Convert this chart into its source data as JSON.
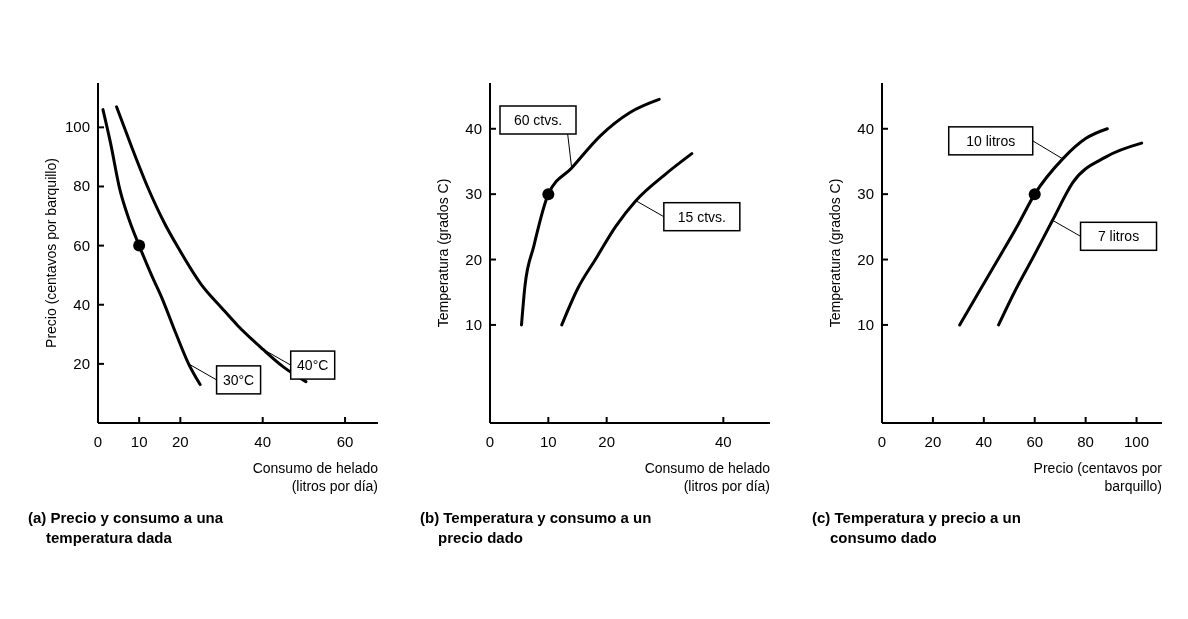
{
  "chart_data": [
    {
      "type": "line",
      "title": "(a) Precio y consumo a una temperatura dada",
      "xlabel": "Consumo de helado (litros por día)",
      "ylabel": "Precio (centavos por barquillo)",
      "xlim": [
        0,
        68
      ],
      "ylim": [
        0,
        115
      ],
      "xticks": [
        0,
        10,
        20,
        40,
        60
      ],
      "yticks": [
        20,
        40,
        60,
        80,
        100
      ],
      "series": [
        {
          "type": "line",
          "color": "#000000",
          "x": [
            1.2,
            3,
            5.3,
            7.5,
            10,
            13,
            15.6,
            19,
            22,
            24.8
          ],
          "values": [
            106,
            95,
            79,
            69,
            60,
            50,
            42,
            30,
            20,
            13
          ]
        },
        {
          "type": "line",
          "color": "#000000",
          "x": [
            4.5,
            8,
            12,
            16,
            19.6,
            25,
            30,
            33.9,
            40,
            45,
            50.5
          ],
          "values": [
            107,
            94,
            80,
            68,
            59,
            47,
            39,
            33,
            25,
            19,
            14
          ]
        },
        {
          "type": "scatter",
          "marker": "circle",
          "color": "#000000",
          "x": [
            10
          ],
          "values": [
            60
          ]
        }
      ],
      "annotations": [
        {
          "text": "30°C",
          "x": 22,
          "y": 20
        },
        {
          "text": "40°C",
          "x": 40,
          "y": 25
        }
      ]
    },
    {
      "type": "line",
      "title": "(b) Temperatura y consumo a un precio dado",
      "xlabel": "Consumo de helado (litros por día)",
      "ylabel": "Temperatura (grados C)",
      "xlim": [
        0,
        48
      ],
      "ylim": [
        -5,
        47
      ],
      "xticks": [
        0,
        10,
        20,
        40
      ],
      "yticks": [
        10,
        20,
        30,
        40
      ],
      "series": [
        {
          "type": "line",
          "color": "#000000",
          "x": [
            5.4,
            6,
            7.5,
            10,
            14,
            19,
            24,
            29
          ],
          "values": [
            10,
            16,
            22,
            30,
            34,
            39,
            42.5,
            44.5
          ]
        },
        {
          "type": "line",
          "color": "#000000",
          "x": [
            12.3,
            15,
            18.2,
            21.5,
            25,
            30,
            34.6
          ],
          "values": [
            10,
            15.5,
            20.2,
            25,
            29,
            33,
            36.2
          ]
        },
        {
          "type": "scatter",
          "marker": "circle",
          "color": "#000000",
          "x": [
            10
          ],
          "values": [
            30
          ]
        }
      ],
      "annotations": [
        {
          "text": "60 ctvs.",
          "x": 14,
          "y": 34
        },
        {
          "text": "15 ctvs.",
          "x": 25,
          "y": 29
        }
      ]
    },
    {
      "type": "line",
      "title": "(c) Temperatura y precio a un consumo dado",
      "xlabel": "Precio (centavos por barquillo)",
      "ylabel": "Temperatura (grados C)",
      "xlim": [
        0,
        110
      ],
      "ylim": [
        -5,
        47
      ],
      "xticks": [
        0,
        20,
        40,
        60,
        80,
        100
      ],
      "yticks": [
        10,
        20,
        30,
        40
      ],
      "series": [
        {
          "type": "line",
          "color": "#000000",
          "x": [
            30.5,
            38,
            46,
            53,
            60,
            71,
            80,
            88.5
          ],
          "values": [
            10,
            15,
            20.3,
            25,
            30,
            35.4,
            38.5,
            40
          ]
        },
        {
          "type": "line",
          "color": "#000000",
          "x": [
            45.8,
            52,
            60,
            67,
            75,
            88,
            102
          ],
          "values": [
            10,
            15,
            20.8,
            26,
            31.8,
            35.7,
            37.8
          ]
        },
        {
          "type": "scatter",
          "marker": "circle",
          "color": "#000000",
          "x": [
            60
          ],
          "values": [
            30
          ]
        }
      ],
      "annotations": [
        {
          "text": "10 litros",
          "x": 71,
          "y": 35.4
        },
        {
          "text": "7 litros",
          "x": 67,
          "y": 26
        }
      ]
    }
  ]
}
